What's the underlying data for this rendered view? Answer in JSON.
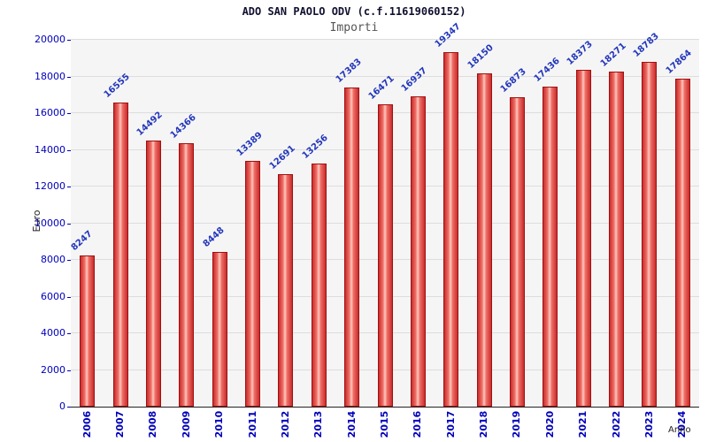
{
  "chart_data": {
    "type": "bar",
    "title": "ADO SAN PAOLO ODV (c.f.11619060152)",
    "subtitle": "Importi",
    "xlabel": "Anno",
    "ylabel": "Euro",
    "categories": [
      "2006",
      "2007",
      "2008",
      "2009",
      "2010",
      "2011",
      "2012",
      "2013",
      "2014",
      "2015",
      "2016",
      "2017",
      "2018",
      "2019",
      "2020",
      "2021",
      "2022",
      "2023",
      "2024"
    ],
    "values": [
      8247,
      16555,
      14492,
      14366,
      8448,
      13389,
      12691,
      13256,
      17383,
      16471,
      16937,
      19347,
      18150,
      16873,
      17436,
      18373,
      18271,
      18783,
      17864
    ],
    "ylim": [
      0,
      20000
    ],
    "ytick": 2000,
    "grid": true,
    "legend": "none",
    "colors": {
      "bar_fill": "#e84b4b",
      "bar_highlight": "#ffc9c0",
      "bar_border": "#a01010",
      "axis_tick_label": "#0000bb",
      "value_label": "#2236bb",
      "title": "#101030",
      "subtitle": "#555555",
      "plot_background": "#f5f5f5",
      "grid_line": "#dddddd"
    }
  }
}
